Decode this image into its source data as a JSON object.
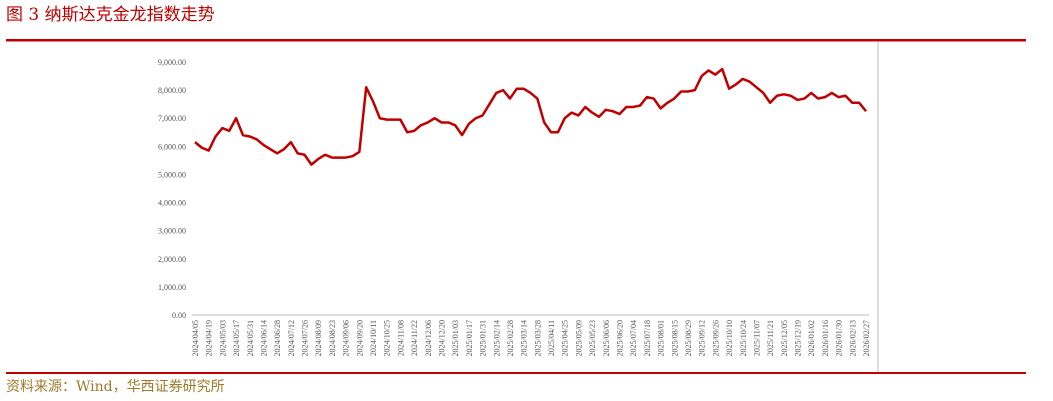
{
  "caption": "图 3  纳斯达克金龙指数走势",
  "source": "资料来源：Wind，华西证券研究所",
  "chart_data": {
    "type": "line",
    "color": "#c00000",
    "categories": [
      "2024/04/05",
      null,
      "2024/04/19",
      null,
      "2024/05/03",
      null,
      "2024/05/17",
      null,
      "2024/05/31",
      null,
      "2024/06/14",
      null,
      "2024/06/28",
      null,
      "2024/07/12",
      null,
      "2024/07/26",
      null,
      "2024/08/09",
      null,
      "2024/08/23",
      null,
      "2024/09/06",
      null,
      "2024/09/20",
      null,
      "2024/10/11",
      null,
      "2024/10/25",
      null,
      "2024/11/08",
      null,
      "2024/11/22",
      null,
      "2024/12/06",
      null,
      "2024/12/20",
      null,
      "2025/01/03",
      null,
      "2025/01/17",
      null,
      "2025/01/31",
      null,
      "2025/02/14",
      null,
      "2025/02/28",
      null,
      "2025/03/14",
      null,
      "2025/03/28",
      null,
      "2025/04/11",
      null,
      "2025/04/25",
      null,
      "2025/05/09",
      null,
      "2025/05/23",
      null,
      "2025/06/06",
      null,
      "2025/06/20",
      null,
      "2025/07/04",
      null,
      "2025/07/18",
      null,
      "2025/08/01",
      null,
      "2025/08/15",
      null,
      "2025/08/29",
      null,
      "2025/09/12",
      null,
      "2025/09/26",
      null,
      "2025/10/10",
      null,
      "2025/10/24",
      null,
      "2025/11/07",
      null,
      "2025/11/21",
      null,
      "2025/12/05",
      null,
      "2025/12/19",
      null,
      "2026/01/02",
      null,
      "2026/01/16",
      null,
      "2026/01/30",
      null,
      "2026/02/13",
      null,
      "2026/02/27"
    ],
    "values": [
      6150,
      5950,
      5850,
      6350,
      6650,
      6550,
      7000,
      6400,
      6350,
      6250,
      6050,
      5900,
      5750,
      5900,
      6150,
      5750,
      5700,
      5350,
      5550,
      5700,
      5600,
      5600,
      5600,
      5650,
      5800,
      8100,
      7600,
      7000,
      6950,
      6950,
      6950,
      6500,
      6550,
      6750,
      6850,
      7000,
      6850,
      6850,
      6750,
      6400,
      6800,
      7000,
      7100,
      7500,
      7900,
      8000,
      7700,
      8050,
      8050,
      7900,
      7700,
      6850,
      6500,
      6500,
      7000,
      7200,
      7100,
      7400,
      7200,
      7050,
      7300,
      7250,
      7150,
      7400,
      7400,
      7450,
      7750,
      7700,
      7350,
      7550,
      7700,
      7950,
      7950,
      8000,
      8500,
      8700,
      8550,
      8750,
      8050,
      8200,
      8400,
      8300,
      8100,
      7900,
      7550,
      7800,
      7850,
      7800,
      7650,
      7700,
      7900,
      7700,
      7750,
      7900,
      7750,
      7800,
      7550,
      7550,
      7250
    ],
    "ylim": [
      0,
      9000
    ],
    "yticks": [
      {
        "value": 0,
        "label": "0.00"
      },
      {
        "value": 1000,
        "label": "1,000.00"
      },
      {
        "value": 2000,
        "label": "2,000.00"
      },
      {
        "value": 3000,
        "label": "3,000.00"
      },
      {
        "value": 4000,
        "label": "4,000.00"
      },
      {
        "value": 5000,
        "label": "5,000.00"
      },
      {
        "value": 6000,
        "label": "6,000.00"
      },
      {
        "value": 7000,
        "label": "7,000.00"
      },
      {
        "value": 8000,
        "label": "8,000.00"
      },
      {
        "value": 9000,
        "label": "9,000.00"
      }
    ]
  }
}
